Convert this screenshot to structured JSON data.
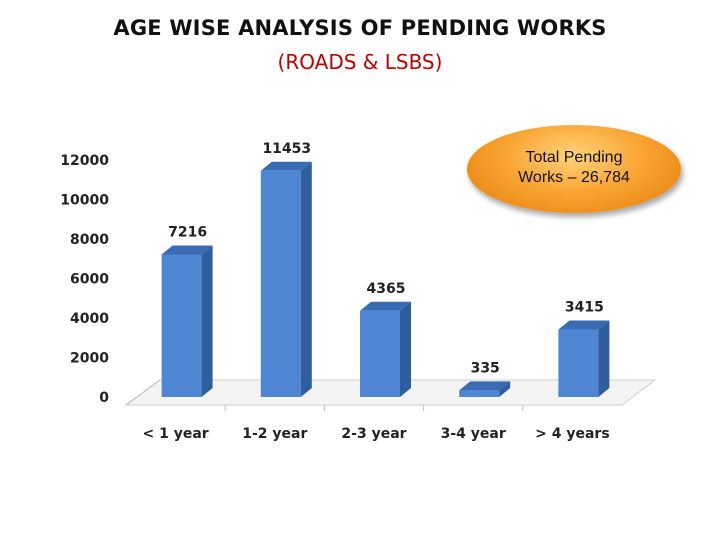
{
  "header": {
    "title": "AGE WISE ANALYSIS OF PENDING WORKS",
    "subtitle": "(ROADS & LSBS)"
  },
  "colors": {
    "subtitle": "#c00000",
    "bar_front": "#4f86d4",
    "bar_side": "#2f5e9e",
    "bar_top": "#3a6cb3",
    "callout": "#f5a030"
  },
  "callout": {
    "text": "Total Pending\nWorks – 26,784"
  },
  "chart_data": {
    "type": "bar",
    "title": "AGE WISE ANALYSIS OF PENDING WORKS",
    "subtitle": "(ROADS & LSBS)",
    "xlabel": "",
    "ylabel": "",
    "categories": [
      "< 1 year",
      "1-2 year",
      "2-3 year",
      "3-4 year",
      "> 4 years"
    ],
    "values": [
      7216,
      11453,
      4365,
      335,
      3415
    ],
    "data_labels": [
      "7216",
      "11453",
      "4365",
      "335",
      "3415"
    ],
    "ylim": [
      0,
      12000
    ],
    "yticks": [
      0,
      2000,
      4000,
      6000,
      8000,
      10000,
      12000
    ],
    "ytick_labels": [
      "0",
      "2000",
      "4000",
      "6000",
      "8000",
      "10000",
      "12000"
    ],
    "grid": false,
    "style": "3d-column"
  }
}
